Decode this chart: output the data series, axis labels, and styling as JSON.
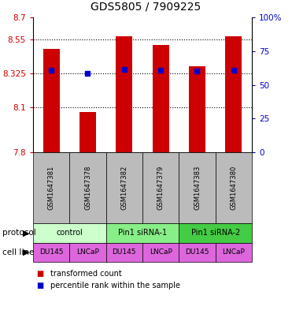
{
  "title": "GDS5805 / 7909225",
  "samples": [
    "GSM1647381",
    "GSM1647378",
    "GSM1647382",
    "GSM1647379",
    "GSM1647383",
    "GSM1647380"
  ],
  "red_values": [
    8.487,
    8.07,
    8.575,
    8.515,
    8.375,
    8.575
  ],
  "blue_values": [
    8.35,
    8.325,
    8.355,
    8.345,
    8.34,
    8.35
  ],
  "ylim_left": [
    7.8,
    8.7
  ],
  "ylim_right": [
    0,
    100
  ],
  "yticks_left": [
    7.8,
    8.1,
    8.325,
    8.55,
    8.7
  ],
  "ytick_labels_left": [
    "7.8",
    "8.1",
    "8.325",
    "8.55",
    "8.7"
  ],
  "yticks_right": [
    0,
    25,
    50,
    75,
    100
  ],
  "ytick_labels_right": [
    "0",
    "25",
    "50",
    "75",
    "100%"
  ],
  "protocol_groups": [
    {
      "label": "control",
      "span": [
        0,
        2
      ],
      "color": "#ccffcc"
    },
    {
      "label": "Pin1 siRNA-1",
      "span": [
        2,
        4
      ],
      "color": "#88ee88"
    },
    {
      "label": "Pin1 siRNA-2",
      "span": [
        4,
        6
      ],
      "color": "#44cc44"
    }
  ],
  "cell_lines": [
    "DU145",
    "LNCaP",
    "DU145",
    "LNCaP",
    "DU145",
    "LNCaP"
  ],
  "cell_line_color": "#dd66dd",
  "bar_color": "#cc0000",
  "blue_marker_color": "#0000cc",
  "left_axis_color": "#cc0000",
  "right_axis_color": "#0000cc",
  "bar_width": 0.45,
  "grid_dotted_vals": [
    8.1,
    8.325,
    8.55
  ]
}
